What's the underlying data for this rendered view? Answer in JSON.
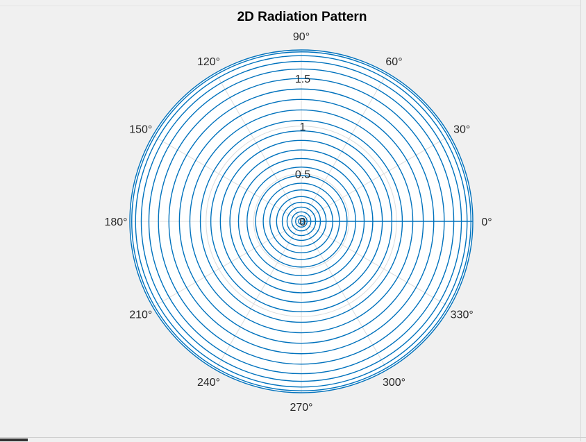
{
  "figure": {
    "background": "#f0f0f0"
  },
  "chart_data": {
    "type": "polar-line",
    "title": "2D Radiation Pattern",
    "theta_unit": "degrees",
    "theta_ticks": [
      0,
      30,
      60,
      90,
      120,
      150,
      180,
      210,
      240,
      270,
      300,
      330
    ],
    "theta_tick_labels": [
      "0°",
      "30°",
      "60°",
      "90°",
      "120°",
      "150°",
      "180°",
      "210°",
      "240°",
      "270°",
      "300°",
      "330°"
    ],
    "r_ticks": [
      0,
      0.5,
      1,
      1.5
    ],
    "r_tick_labels": [
      "0",
      "0.5",
      "1",
      "1.5"
    ],
    "r_tick_angle_deg": 90,
    "rlim": [
      0,
      1.8
    ],
    "grid": true,
    "colors": {
      "series": "#0072BD",
      "grid": "#dcdcdc",
      "axes_background": "#ffffff",
      "text": "#262626"
    },
    "series": [
      {
        "description": "constant-radius circular traces swept 0–360°",
        "circle_radii": [
          0.03,
          0.06,
          0.1,
          0.15,
          0.2,
          0.26,
          0.33,
          0.4,
          0.48,
          0.57,
          0.66,
          0.75,
          0.85,
          0.95,
          1.06,
          1.17,
          1.28,
          1.39,
          1.5,
          1.6,
          1.68,
          1.74,
          1.78,
          1.8
        ],
        "radial_segment": {
          "theta_deg": 0,
          "r_from": 0,
          "r_to": 1.8
        }
      }
    ]
  }
}
